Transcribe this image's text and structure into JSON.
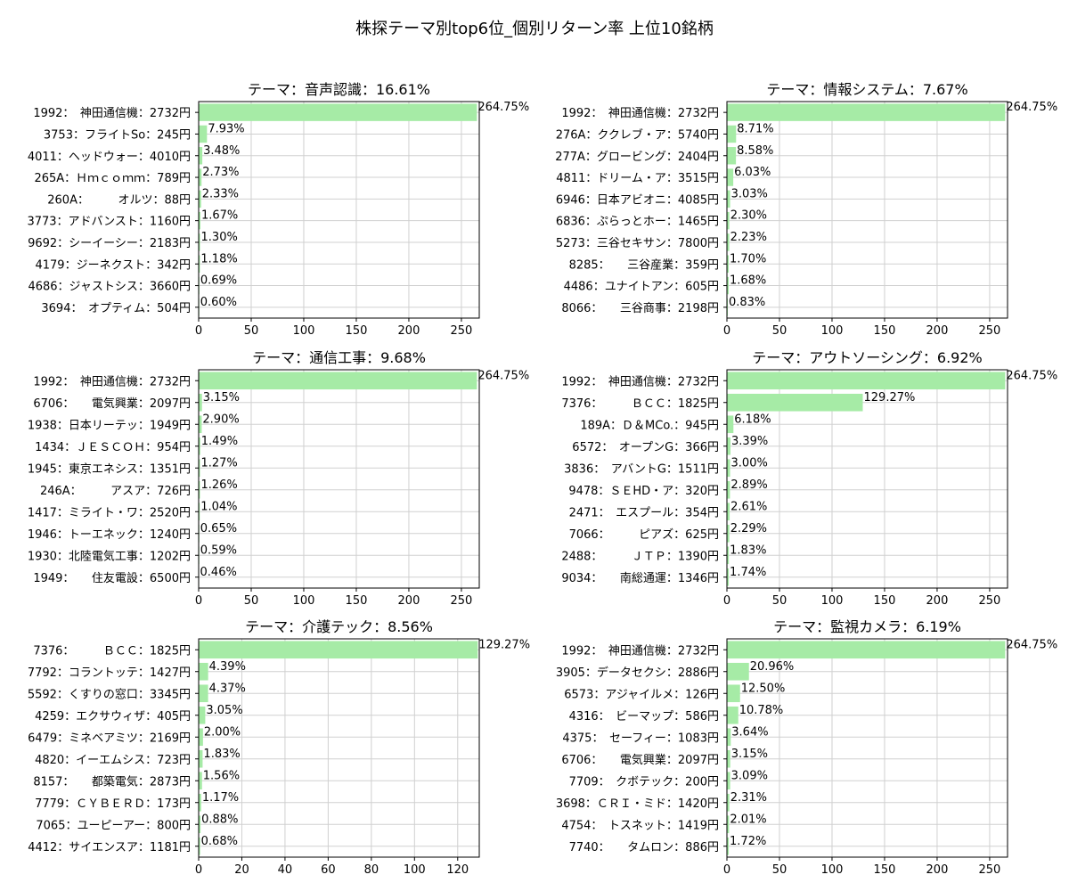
{
  "suptitle": "株探テーマ別top6位_個別リターン率 上位10銘柄",
  "colors": {
    "bar": "#a6eba6",
    "grid": "#d0d0d0",
    "axis": "#000000"
  },
  "chart_data": [
    {
      "type": "bar",
      "orientation": "horizontal",
      "title": "テーマ：音声認識：16.61%",
      "categories": [
        "1992：　神田通信機：2732円",
        "3753：フライトSo：245円",
        "4011：ヘッドウォー：4010円",
        "265A：Ｈｍｃｏｍｍ：789円",
        "260A：　　　オルツ：88円",
        "3773：アドバンスト：1160円",
        "9692：シーイーシー：2183円",
        "4179：ジーネクスト：342円",
        "4686：ジャストシス：3660円",
        "3694：　オプティム：504円"
      ],
      "values": [
        264.75,
        7.93,
        3.48,
        2.73,
        2.33,
        1.67,
        1.3,
        1.18,
        0.69,
        0.6
      ],
      "value_labels": [
        "264.75%",
        "7.93%",
        "3.48%",
        "2.73%",
        "2.33%",
        "1.67%",
        "1.30%",
        "1.18%",
        "0.69%",
        "0.60%"
      ],
      "xlim": [
        0,
        267
      ],
      "xticks": [
        "0",
        "50",
        "100",
        "150",
        "200",
        "250"
      ],
      "grid": true
    },
    {
      "type": "bar",
      "orientation": "horizontal",
      "title": "テーマ：情報システム：7.67%",
      "categories": [
        "1992：　神田通信機：2732円",
        "276A：ククレブ・ア：5740円",
        "277A：グロービング：2404円",
        "4811：ドリーム・ア：3515円",
        "6946：日本アビオニ：4085円",
        "6836：ぷらっとホー：1465円",
        "5273：三谷セキサン：7800円",
        "8285：　　三谷産業：359円",
        "4486：ユナイトアン：605円",
        "8066：　　三谷商事：2198円"
      ],
      "values": [
        264.75,
        8.71,
        8.58,
        6.03,
        3.03,
        2.3,
        2.23,
        1.7,
        1.68,
        0.83
      ],
      "value_labels": [
        "264.75%",
        "8.71%",
        "8.58%",
        "6.03%",
        "3.03%",
        "2.30%",
        "2.23%",
        "1.70%",
        "1.68%",
        "0.83%"
      ],
      "xlim": [
        0,
        267
      ],
      "xticks": [
        "0",
        "50",
        "100",
        "150",
        "200",
        "250"
      ],
      "grid": true
    },
    {
      "type": "bar",
      "orientation": "horizontal",
      "title": "テーマ：通信工事：9.68%",
      "categories": [
        "1992：　神田通信機：2732円",
        "6706：　　電気興業：2097円",
        "1938：日本リーテッ：1949円",
        "1434：ＪＥＳＣＯＨ：954円",
        "1945：東京エネシス：1351円",
        "246A：　　　アスア：726円",
        "1417：ミライト・ワ：2520円",
        "1946：トーエネック：1240円",
        "1930：北陸電気工事：1202円",
        "1949：　　住友電設：6500円"
      ],
      "values": [
        264.75,
        3.15,
        2.9,
        1.49,
        1.27,
        1.26,
        1.04,
        0.65,
        0.59,
        0.46
      ],
      "value_labels": [
        "264.75%",
        "3.15%",
        "2.90%",
        "1.49%",
        "1.27%",
        "1.26%",
        "1.04%",
        "0.65%",
        "0.59%",
        "0.46%"
      ],
      "xlim": [
        0,
        267
      ],
      "xticks": [
        "0",
        "50",
        "100",
        "150",
        "200",
        "250"
      ],
      "grid": true
    },
    {
      "type": "bar",
      "orientation": "horizontal",
      "title": "テーマ：アウトソーシング：6.92%",
      "categories": [
        "1992：　神田通信機：2732円",
        "7376：　　　ＢＣＣ：1825円",
        "189A：Ｄ＆MCo.：945円",
        "6572：　オープンG：366円",
        "3836：　アバントG：1511円",
        "9478：ＳＥHD・ア：320円",
        "2471：　エスプール：354円",
        "7066：　　　ピアズ：625円",
        "2488：　　　ＪＴＰ：1390円",
        "9034：　　南総通運：1346円"
      ],
      "values": [
        264.75,
        129.27,
        6.18,
        3.39,
        3.0,
        2.89,
        2.61,
        2.29,
        1.83,
        1.74
      ],
      "value_labels": [
        "264.75%",
        "129.27%",
        "6.18%",
        "3.39%",
        "3.00%",
        "2.89%",
        "2.61%",
        "2.29%",
        "1.83%",
        "1.74%"
      ],
      "xlim": [
        0,
        267
      ],
      "xticks": [
        "0",
        "50",
        "100",
        "150",
        "200",
        "250"
      ],
      "grid": true
    },
    {
      "type": "bar",
      "orientation": "horizontal",
      "title": "テーマ：介護テック：8.56%",
      "categories": [
        "7376：　　　ＢＣＣ：1825円",
        "7792：コラントッテ：1427円",
        "5592：くすりの窓口：3345円",
        "4259：エクサウィザ：405円",
        "6479：ミネベアミツ：2169円",
        "4820：イーエムシス：723円",
        "8157：　　都築電気：2873円",
        "7779：ＣＹＢＥＲＤ：173円",
        "7065：ユーピーアー：800円",
        "4412：サイエンスア：1181円"
      ],
      "values": [
        129.27,
        4.39,
        4.37,
        3.05,
        2.0,
        1.83,
        1.56,
        1.17,
        0.88,
        0.68
      ],
      "value_labels": [
        "129.27%",
        "4.39%",
        "4.37%",
        "3.05%",
        "2.00%",
        "1.83%",
        "1.56%",
        "1.17%",
        "0.88%",
        "0.68%"
      ],
      "xlim": [
        0,
        130
      ],
      "xticks": [
        "0",
        "20",
        "40",
        "60",
        "80",
        "100",
        "120"
      ],
      "grid": true
    },
    {
      "type": "bar",
      "orientation": "horizontal",
      "title": "テーマ：監視カメラ：6.19%",
      "categories": [
        "1992：　神田通信機：2732円",
        "3905：データセクシ：2886円",
        "6573：アジャイルメ：126円",
        "4316：　ビーマップ：586円",
        "4375：　セーフィー：1083円",
        "6706：　　電気興業：2097円",
        "7709：　クボテック：200円",
        "3698：ＣＲＩ・ミド：1420円",
        "4754：　トスネット：1419円",
        "7740：　　タムロン：886円"
      ],
      "values": [
        264.75,
        20.96,
        12.5,
        10.78,
        3.64,
        3.15,
        3.09,
        2.31,
        2.01,
        1.72
      ],
      "value_labels": [
        "264.75%",
        "20.96%",
        "12.50%",
        "10.78%",
        "3.64%",
        "3.15%",
        "3.09%",
        "2.31%",
        "2.01%",
        "1.72%"
      ],
      "xlim": [
        0,
        267
      ],
      "xticks": [
        "0",
        "50",
        "100",
        "150",
        "200",
        "250"
      ],
      "grid": true
    }
  ]
}
